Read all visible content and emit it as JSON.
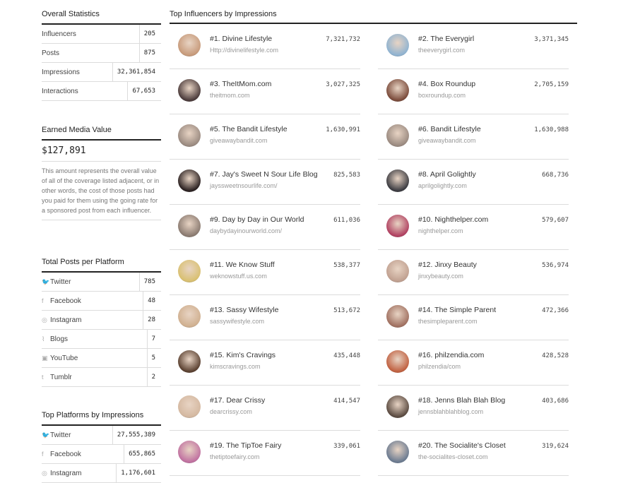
{
  "overall": {
    "title": "Overall Statistics",
    "rows": [
      {
        "label": "Influencers",
        "value": "205"
      },
      {
        "label": "Posts",
        "value": "875"
      },
      {
        "label": "Impressions",
        "value": "32,361,854"
      },
      {
        "label": "Interactions",
        "value": "67,653"
      }
    ]
  },
  "emv": {
    "title": "Earned Media Value",
    "value": "$127,891",
    "description": "This amount represents the overall value of all of the coverage listed adjacent, or in other words, the cost of those posts had you paid for them using the going rate for a sponsored post from each influencer."
  },
  "posts_per_platform": {
    "title": "Total Posts per Platform",
    "rows": [
      {
        "icon": "twitter-icon",
        "glyph": "🐦",
        "label": "Twitter",
        "value": "785"
      },
      {
        "icon": "facebook-icon",
        "glyph": "f",
        "label": "Facebook",
        "value": "48"
      },
      {
        "icon": "instagram-icon",
        "glyph": "◎",
        "label": "Instagram",
        "value": "28"
      },
      {
        "icon": "rss-icon",
        "glyph": "⌇",
        "label": "Blogs",
        "value": "7"
      },
      {
        "icon": "youtube-icon",
        "glyph": "▣",
        "label": "YouTube",
        "value": "5"
      },
      {
        "icon": "tumblr-icon",
        "glyph": "t",
        "label": "Tumblr",
        "value": "2"
      }
    ]
  },
  "top_platforms": {
    "title": "Top Platforms by Impressions",
    "rows": [
      {
        "icon": "twitter-icon",
        "glyph": "🐦",
        "label": "Twitter",
        "value": "27,555,389"
      },
      {
        "icon": "facebook-icon",
        "glyph": "f",
        "label": "Facebook",
        "value": "655,865"
      },
      {
        "icon": "instagram-icon",
        "glyph": "◎",
        "label": "Instagram",
        "value": "1,176,601"
      }
    ]
  },
  "influencers": {
    "title": "Top Influencers by Impressions",
    "items": [
      {
        "name": "#1. Divine Lifestyle",
        "url": "Http://divinelifestyle.com",
        "impressions": "7,321,732",
        "color": "#c79a7a"
      },
      {
        "name": "#2. The Everygirl",
        "url": "theeverygirl.com",
        "impressions": "3,371,345",
        "color": "#8fb3d1"
      },
      {
        "name": "#3. TheItMom.com",
        "url": "theitmom.com",
        "impressions": "3,027,325",
        "color": "#4a3a3a"
      },
      {
        "name": "#4. Box Roundup",
        "url": "boxroundup.com",
        "impressions": "2,705,159",
        "color": "#7a4a3a"
      },
      {
        "name": "#5. The Bandit Lifestyle",
        "url": "giveawaybandit.com",
        "impressions": "1,630,991",
        "color": "#9a8a80"
      },
      {
        "name": "#6. Bandit Lifestyle",
        "url": "giveawaybandit.com",
        "impressions": "1,630,988",
        "color": "#9a8a80"
      },
      {
        "name": "#7. Jay's Sweet N Sour Life Blog",
        "url": "jayssweetnsourlife.com/",
        "impressions": "825,583",
        "color": "#2a2020"
      },
      {
        "name": "#8. April Golightly",
        "url": "aprilgolightly.com",
        "impressions": "668,736",
        "color": "#3a3a40"
      },
      {
        "name": "#9. Day by Day in Our World",
        "url": "daybydayinourworld.com/",
        "impressions": "611,036",
        "color": "#8a7a70"
      },
      {
        "name": "#10. Nighthelper.com",
        "url": "nighthelper.com",
        "impressions": "579,607",
        "color": "#b04060"
      },
      {
        "name": "#11. We Know Stuff",
        "url": "weknowstuff.us.com",
        "impressions": "538,377",
        "color": "#d9c070"
      },
      {
        "name": "#12. Jinxy Beauty",
        "url": "jinxybeauty.com",
        "impressions": "536,974",
        "color": "#c0a090"
      },
      {
        "name": "#13. Sassy Wifestyle",
        "url": "sassywifestyle.com",
        "impressions": "513,672",
        "color": "#d0b090"
      },
      {
        "name": "#14. The Simple Parent",
        "url": "thesimpleparent.com",
        "impressions": "472,366",
        "color": "#a07060"
      },
      {
        "name": "#15. Kim's Cravings",
        "url": "kimscravings.com",
        "impressions": "435,448",
        "color": "#5a4030"
      },
      {
        "name": "#16. philzendia.com",
        "url": "philzendia/com",
        "impressions": "428,528",
        "color": "#c06040"
      },
      {
        "name": "#17. Dear Crissy",
        "url": "dearcrissy.com",
        "impressions": "414,547",
        "color": "#d4b8a0"
      },
      {
        "name": "#18. Jenns Blah Blah Blog",
        "url": "jennsblahblahblog.com",
        "impressions": "403,686",
        "color": "#5a4a40"
      },
      {
        "name": "#19. The TipToe Fairy",
        "url": "thetiptoefairy.com",
        "impressions": "339,061",
        "color": "#c070a0"
      },
      {
        "name": "#20. The Socialite's Closet",
        "url": "the-socialites-closet.com",
        "impressions": "319,624",
        "color": "#6a7a90"
      }
    ]
  }
}
